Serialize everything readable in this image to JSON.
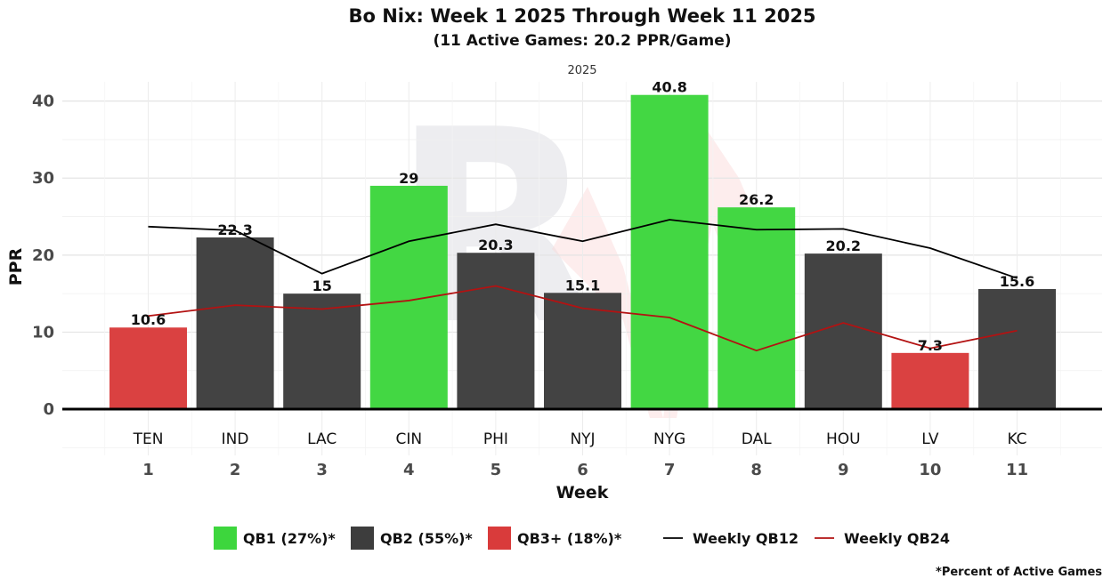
{
  "chart_data": {
    "type": "bar",
    "title": "Bo Nix: Week 1 2025 Through Week 11 2025",
    "subtitle": "(11 Active Games: 20.2 PPR/Game)",
    "facet_label": "2025",
    "xlabel": "Week",
    "ylabel": "PPR",
    "ylim": [
      -6,
      42.5
    ],
    "yticks": [
      0,
      10,
      20,
      30,
      40
    ],
    "categories": [
      "1",
      "2",
      "3",
      "4",
      "5",
      "6",
      "7",
      "8",
      "9",
      "10",
      "11"
    ],
    "opponents": [
      "TEN",
      "IND",
      "LAC",
      "CIN",
      "PHI",
      "NYJ",
      "NYG",
      "DAL",
      "HOU",
      "LV",
      "KC"
    ],
    "values": [
      10.6,
      22.3,
      15,
      29,
      20.3,
      15.1,
      40.8,
      26.2,
      20.2,
      7.3,
      15.6
    ],
    "value_labels": [
      "10.6",
      "22.3",
      "15",
      "29",
      "20.3",
      "15.1",
      "40.8",
      "26.2",
      "20.2",
      "7.3",
      "15.6"
    ],
    "tiers": [
      "QB3+",
      "QB2",
      "QB2",
      "QB1",
      "QB2",
      "QB2",
      "QB1",
      "QB1",
      "QB2",
      "QB3+",
      "QB2"
    ],
    "tier_colors": {
      "QB1": "#3dd63d",
      "QB2": "#3d3d3d",
      "QB3+": "#d93b3b"
    },
    "lines": [
      {
        "name": "Weekly QB12",
        "color": "#000000",
        "values": [
          23.7,
          23.2,
          17.6,
          21.8,
          24.0,
          21.8,
          24.6,
          23.3,
          23.4,
          20.9,
          17.0
        ]
      },
      {
        "name": "Weekly QB24",
        "color": "#b31212",
        "values": [
          12.1,
          13.5,
          13.0,
          14.1,
          16.0,
          13.1,
          11.9,
          7.6,
          11.2,
          7.9,
          10.2
        ]
      }
    ],
    "legend": {
      "placement": "bottom",
      "items": [
        {
          "kind": "box",
          "label": "QB1 (27%)*",
          "color": "#3dd63d"
        },
        {
          "kind": "box",
          "label": "QB2 (55%)*",
          "color": "#3d3d3d"
        },
        {
          "kind": "box",
          "label": "QB3+ (18%)*",
          "color": "#d93b3b"
        },
        {
          "kind": "line",
          "label": "Weekly QB12",
          "color": "#000000"
        },
        {
          "kind": "line",
          "label": "Weekly QB24",
          "color": "#b31212"
        }
      ]
    },
    "footnote": "*Percent of Active Games"
  }
}
